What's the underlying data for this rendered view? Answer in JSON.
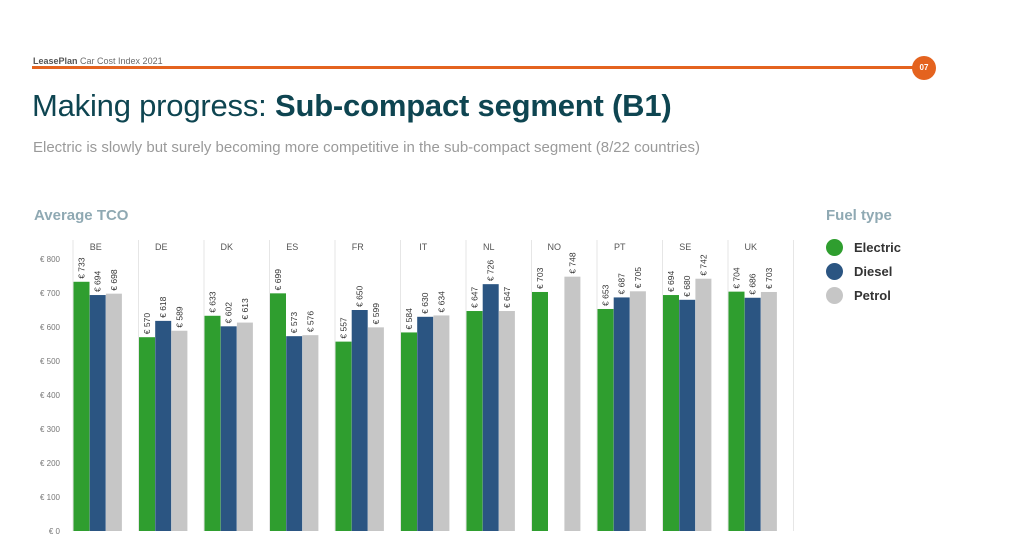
{
  "header": {
    "brand_bold": "LeasePlan",
    "brand_rest": " Car Cost Index 2021",
    "page_number": "07"
  },
  "title": {
    "regular": "Making progress: ",
    "bold": "Sub-compact segment (B1)"
  },
  "subtitle": "Electric is slowly but surely becoming more competitive in the sub-compact segment (8/22 countries)",
  "colors": {
    "accent": "#e4631f",
    "electric": "#2f9e2f",
    "diesel": "#2b5582",
    "petrol": "#c6c6c6"
  },
  "chart_data": {
    "type": "bar",
    "title": "Average TCO",
    "legend_title": "Fuel type",
    "legend_position": "right",
    "categories": [
      "BE",
      "DE",
      "DK",
      "ES",
      "FR",
      "IT",
      "NL",
      "NO",
      "PT",
      "SE",
      "UK"
    ],
    "series": [
      {
        "name": "Electric",
        "color": "#2f9e2f",
        "values": [
          733,
          570,
          633,
          699,
          557,
          584,
          647,
          703,
          653,
          694,
          704
        ]
      },
      {
        "name": "Diesel",
        "color": "#2b5582",
        "values": [
          694,
          618,
          602,
          573,
          650,
          630,
          726,
          null,
          687,
          680,
          686
        ]
      },
      {
        "name": "Petrol",
        "color": "#c6c6c6",
        "values": [
          698,
          589,
          613,
          576,
          599,
          634,
          647,
          748,
          705,
          742,
          703
        ]
      }
    ],
    "value_prefix": "€ ",
    "y_ticks": [
      0,
      100,
      200,
      300,
      400,
      500,
      600,
      700,
      800
    ],
    "y_tick_labels": [
      "€ 0",
      "€ 100",
      "€ 200",
      "€ 300",
      "€ 400",
      "€ 500",
      "€ 600",
      "€ 700",
      "€ 800"
    ],
    "ylim": [
      0,
      800
    ],
    "grid": false
  }
}
